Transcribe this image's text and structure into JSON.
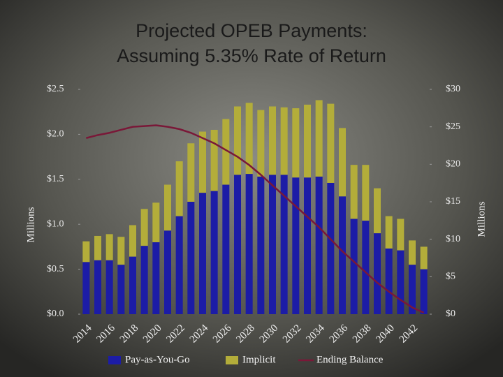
{
  "chart_data": {
    "type": "bar",
    "stacked": true,
    "title": [
      "Projected OPEB Payments:",
      "Assuming 5.35% Rate of Return"
    ],
    "ylabel": "Millions",
    "y2label": "Millions",
    "categories": [
      "2014",
      null,
      "2016",
      null,
      "2018",
      null,
      "2020",
      null,
      "2022",
      null,
      "2024",
      null,
      "2026",
      null,
      "2028",
      null,
      "2030",
      null,
      "2032",
      null,
      "2034",
      null,
      "2036",
      null,
      "2038",
      null,
      "2040",
      null,
      "2042",
      null
    ],
    "series": [
      {
        "name": "Pay-as-You-Go",
        "color": "#1c1ca6",
        "values": [
          0.58,
          0.6,
          0.6,
          0.55,
          0.64,
          0.76,
          0.8,
          0.93,
          1.09,
          1.25,
          1.35,
          1.37,
          1.44,
          1.55,
          1.56,
          1.53,
          1.55,
          1.55,
          1.52,
          1.52,
          1.53,
          1.46,
          1.31,
          1.06,
          1.04,
          0.9,
          0.73,
          0.71,
          0.55,
          0.5
        ]
      },
      {
        "name": "Implicit",
        "color": "#b3ad3a",
        "values": [
          0.23,
          0.27,
          0.29,
          0.31,
          0.35,
          0.41,
          0.44,
          0.51,
          0.61,
          0.65,
          0.68,
          0.68,
          0.73,
          0.76,
          0.79,
          0.74,
          0.76,
          0.75,
          0.77,
          0.81,
          0.85,
          0.88,
          0.76,
          0.6,
          0.62,
          0.5,
          0.36,
          0.35,
          0.27,
          0.25
        ]
      },
      {
        "name": "Ending Balance",
        "type": "line",
        "axis": "y2",
        "color": "#7a1838",
        "values": [
          23.5,
          23.9,
          24.2,
          24.6,
          25.0,
          25.1,
          25.2,
          25.0,
          24.7,
          24.2,
          23.5,
          22.8,
          21.9,
          21.0,
          19.9,
          18.6,
          17.2,
          15.8,
          14.4,
          13.0,
          11.6,
          10.0,
          8.4,
          7.0,
          5.6,
          4.2,
          3.0,
          1.9,
          0.9,
          0.2
        ]
      }
    ],
    "ylim": [
      0,
      2.5
    ],
    "yticks": [
      {
        "value": 0,
        "label": "$0.0"
      },
      {
        "value": 0.5,
        "label": "$0.5"
      },
      {
        "value": 1,
        "label": "$1.0"
      },
      {
        "value": 1.5,
        "label": "$1.5"
      },
      {
        "value": 2,
        "label": "$2.0"
      },
      {
        "value": 2.5,
        "label": "$2.5"
      }
    ],
    "y2lim": [
      0,
      30
    ],
    "y2ticks": [
      {
        "value": 0,
        "label": "$0"
      },
      {
        "value": 5,
        "label": "$5"
      },
      {
        "value": 10,
        "label": "$10"
      },
      {
        "value": 15,
        "label": "$15"
      },
      {
        "value": 20,
        "label": "$20"
      },
      {
        "value": 25,
        "label": "$25"
      },
      {
        "value": 30,
        "label": "$30"
      }
    ],
    "legend": "bottom"
  }
}
